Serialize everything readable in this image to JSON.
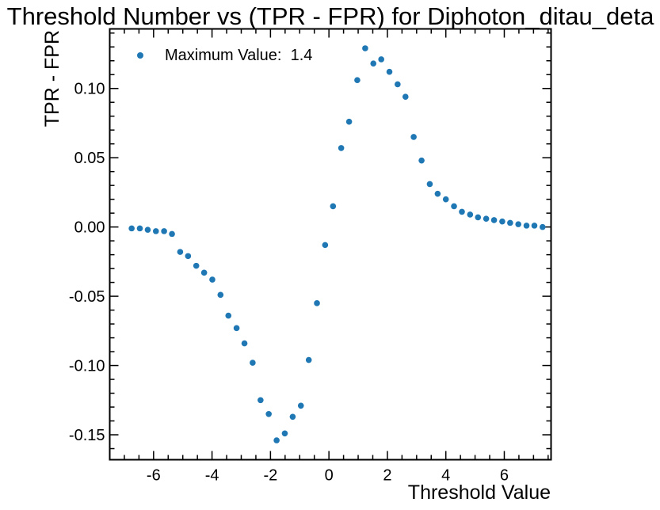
{
  "chart_data": {
    "type": "scatter",
    "title": "Threshold Number vs (TPR - FPR) for Diphoton_ditau_deta",
    "xlabel": "Threshold Value",
    "ylabel": "TPR - FPR",
    "xlim": [
      -7.5,
      7.6
    ],
    "ylim": [
      -0.168,
      0.143
    ],
    "xticks": [
      -6,
      -4,
      -2,
      0,
      2,
      4,
      6
    ],
    "xtick_labels": [
      "-6",
      "-4",
      "-2",
      "0",
      "2",
      "4",
      "6"
    ],
    "yticks": [
      -0.15,
      -0.1,
      -0.05,
      0.0,
      0.05,
      0.1
    ],
    "ytick_labels": [
      "-0.15",
      "-0.10",
      "-0.05",
      "0.00",
      "0.05",
      "0.10"
    ],
    "legend": {
      "entries": [
        "Maximum Value:  1.4"
      ],
      "placement": "top-left"
    },
    "series": [
      {
        "name": "Maximum Value:  1.4",
        "color": "#1f77b4",
        "x": [
          -6.75,
          -6.47,
          -6.2,
          -5.92,
          -5.64,
          -5.37,
          -5.09,
          -4.82,
          -4.54,
          -4.27,
          -3.99,
          -3.71,
          -3.44,
          -3.16,
          -2.89,
          -2.61,
          -2.34,
          -2.06,
          -1.79,
          -1.51,
          -1.24,
          -0.96,
          -0.69,
          -0.41,
          -0.13,
          0.14,
          0.42,
          0.69,
          0.97,
          1.24,
          1.52,
          1.79,
          2.07,
          2.35,
          2.62,
          2.9,
          3.17,
          3.45,
          3.72,
          4.0,
          4.28,
          4.55,
          4.83,
          5.1,
          5.38,
          5.65,
          5.93,
          6.2,
          6.48,
          6.76,
          7.03,
          7.31
        ],
        "y": [
          -0.001,
          -0.001,
          -0.002,
          -0.003,
          -0.003,
          -0.005,
          -0.018,
          -0.021,
          -0.028,
          -0.033,
          -0.038,
          -0.049,
          -0.064,
          -0.073,
          -0.084,
          -0.098,
          -0.125,
          -0.135,
          -0.154,
          -0.149,
          -0.137,
          -0.129,
          -0.096,
          -0.055,
          -0.013,
          0.015,
          0.057,
          0.076,
          0.106,
          0.129,
          0.118,
          0.121,
          0.112,
          0.103,
          0.094,
          0.065,
          0.048,
          0.031,
          0.024,
          0.02,
          0.015,
          0.011,
          0.009,
          0.007,
          0.006,
          0.005,
          0.004,
          0.003,
          0.002,
          0.001,
          0.001,
          0.0
        ]
      }
    ]
  }
}
